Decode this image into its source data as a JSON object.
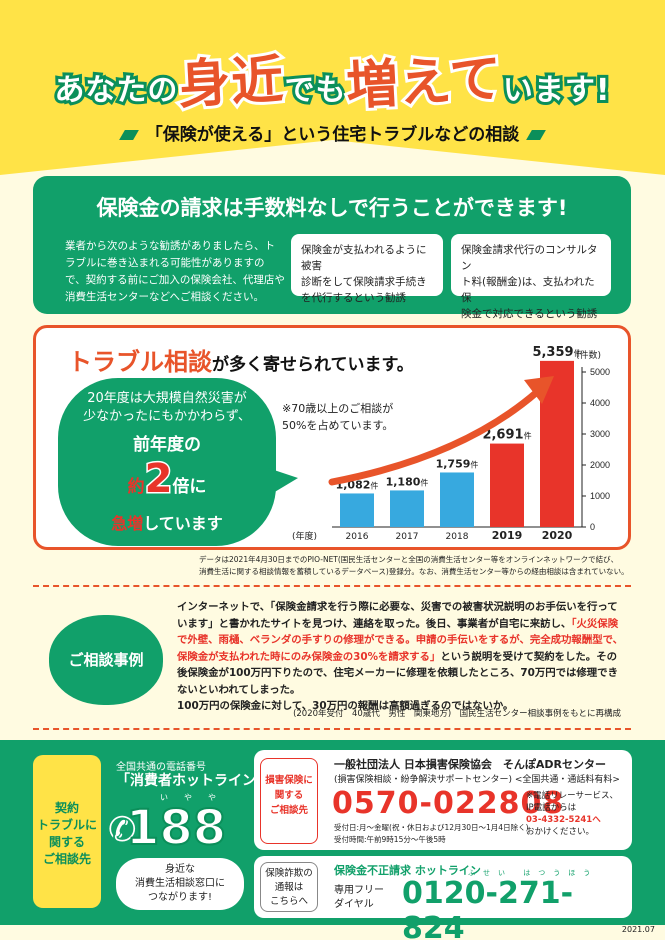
{
  "header": {
    "pre": "あなたの",
    "big1": "身近",
    "mid": "でも",
    "big2": "増えて",
    "post": "います!",
    "subtitle": "「保険が使える」という住宅トラブルなどの相談"
  },
  "notice": {
    "title": "保険金の請求は手数料なしで行うことができます!",
    "lines": [
      "業者から次のような勧誘がありましたら、ト",
      "ラブルに巻き込まれる可能性がありますの",
      "で、契約する前にご加入の保険会社、代理店や",
      "消費生活センターなどへご相談ください。"
    ],
    "note1": [
      "保険金が支払われるように被害",
      "診断をして保険請求手続き",
      "を代行するという勧誘"
    ],
    "note2": [
      "保険金請求代行のコンサルタン",
      "ト料(報酬金)は、支払われた保",
      "険金で対応できるという勧誘"
    ]
  },
  "trouble": {
    "title_orange": "トラブル相談",
    "title_black": "が多く寄せられています。",
    "bubble": {
      "line1": "20年度は大規模自然災害が",
      "line2": "少なかったにもかかわらず、",
      "line3": "前年度の",
      "yaku": "約",
      "two": "2",
      "bai": "倍に",
      "kyu": "急増",
      "post": "しています"
    },
    "note": [
      "※70歳以上のご相談が",
      "50%を占めています。"
    ]
  },
  "chart_data": {
    "type": "bar",
    "categories": [
      "2016",
      "2017",
      "2018",
      "2019",
      "2020"
    ],
    "values": [
      1082,
      1180,
      1759,
      2691,
      5359
    ],
    "value_labels": [
      "1,082",
      "1,180",
      "1,759",
      "2,691",
      "5,359"
    ],
    "unit_suffix": "件",
    "xlabel": "(年度)",
    "ylabel": "(件数)",
    "ylim": [
      0,
      5000
    ],
    "yticks": [
      0,
      1000,
      2000,
      3000,
      4000,
      5000
    ],
    "colors": {
      "normal": "#37a9df",
      "highlight": "#e8342a"
    }
  },
  "footnote": [
    "データは2021年4月30日までのPIO-NET(国民生活センターと全国の消費生活センター等をオンラインネットワークで結び、",
    "消費生活に関する相談情報を蓄積しているデータベース)登録分。なお、消費生活センター等からの経由相談は含まれていない。"
  ],
  "case": {
    "badge": "ご相談事例",
    "p1": "インターネットで、「保険金請求を行う際に必要な、災害での被害状況説明のお手伝いを行っています」と書かれたサイトを見つけ、連絡を取った。後日、事業者が自宅に来訪し、",
    "p1_red": "「火災保険で外壁、雨樋、ベランダの手すりの修理ができる。申請の手伝いをするが、完全成功報酬型で、保険金が支払われた時にのみ保険金の30%を請求する」",
    "p2": "という説明を受けて契約をした。その後保険金が100万円下りたので、住宅メーカーに修理を依頼したところ、70万円では修理できないといわれてしまった。",
    "p3": "100万円の保険金に対して、30万円の報酬は高額過ぎるのではないか。",
    "source": "(2020年受付　40歳代　男性　関東地方)　国民生活センター相談事例をもとに再構成"
  },
  "contact": {
    "yellow": [
      "契約",
      "トラブルに",
      "関する",
      "ご相談先"
    ],
    "hot_label": "全国共通の電話番号",
    "hot_title": "「消費者ホットライン」",
    "hot_ruby": "いやや",
    "hot_number": "188",
    "hot_cloud": [
      "身近な",
      "消費生活相談窓口に",
      "つながります!"
    ],
    "ins_tag": [
      "損害保険に",
      "関する",
      "ご相談先"
    ],
    "org": "一般社団法人 日本損害保険協会　そんぽADRセンター",
    "org_sub": "(損害保険相談・紛争解決サポートセンター) <全国共通・通話料有料>",
    "tel": "0570-022808",
    "hours": [
      "受付日:月～金曜(祝・休日および12月30日～1月4日除く)",
      "受付時間:午前9時15分～午後5時"
    ],
    "ip": [
      "※電話リレーサービス、",
      "IP電話からは",
      "03-4332-5241へ",
      "おかけください。"
    ],
    "fraud_tag": [
      "保険詐欺の",
      "通報は",
      "こちらへ"
    ],
    "fraud_title": "保険金不正請求 ホットライン",
    "freedial": [
      "専用フリー",
      "ダイヤル"
    ],
    "fraud_tel": "0120-271-824",
    "fraud_ruby": "ふせい はつうほう"
  },
  "doc_date": "2021.07"
}
